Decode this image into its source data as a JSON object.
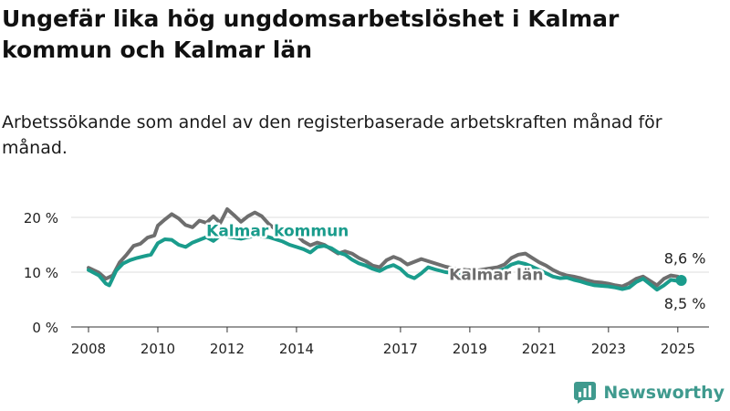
{
  "title": "Ungefär lika hög ungdomsarbetslöshet i Kalmar kommun och Kalmar län",
  "subtitle": "Arbetssökande som andel av den registerbaserade arbetskraften månad för månad.",
  "brand": "Newsworthy",
  "colors": {
    "kommun": "#1a9c8c",
    "lan": "#6e6e6e",
    "grid": "#dddddd",
    "axis": "#333333"
  },
  "chart_data": {
    "type": "line",
    "xlabel": "",
    "ylabel": "",
    "ylim": [
      0,
      22
    ],
    "xlim": [
      2007.5,
      2025.9
    ],
    "yticks": [
      0,
      10,
      20
    ],
    "ytick_labels": [
      "0 %",
      "10 %",
      "20 %"
    ],
    "xticks": [
      2008,
      2010,
      2012,
      2014,
      2017,
      2019,
      2021,
      2023,
      2025
    ],
    "xtick_labels": [
      "2008",
      "2010",
      "2012",
      "2014",
      "2017",
      "2019",
      "2021",
      "2023",
      "2025"
    ],
    "series": [
      {
        "name": "Kalmar län",
        "key": "lan",
        "points": [
          [
            2008.0,
            10.8
          ],
          [
            2008.3,
            9.9
          ],
          [
            2008.5,
            8.8
          ],
          [
            2008.7,
            9.4
          ],
          [
            2008.9,
            11.8
          ],
          [
            2009.1,
            13.2
          ],
          [
            2009.3,
            14.8
          ],
          [
            2009.5,
            15.2
          ],
          [
            2009.7,
            16.3
          ],
          [
            2009.9,
            16.7
          ],
          [
            2010.0,
            18.5
          ],
          [
            2010.2,
            19.6
          ],
          [
            2010.4,
            20.6
          ],
          [
            2010.6,
            19.8
          ],
          [
            2010.8,
            18.6
          ],
          [
            2011.0,
            18.2
          ],
          [
            2011.2,
            19.4
          ],
          [
            2011.4,
            19.0
          ],
          [
            2011.6,
            20.2
          ],
          [
            2011.8,
            19.0
          ],
          [
            2012.0,
            21.5
          ],
          [
            2012.2,
            20.4
          ],
          [
            2012.4,
            19.2
          ],
          [
            2012.6,
            20.2
          ],
          [
            2012.8,
            20.9
          ],
          [
            2013.0,
            20.2
          ],
          [
            2013.2,
            18.8
          ],
          [
            2013.4,
            17.8
          ],
          [
            2013.6,
            17.2
          ],
          [
            2013.8,
            17.6
          ],
          [
            2014.0,
            16.8
          ],
          [
            2014.2,
            15.6
          ],
          [
            2014.4,
            14.9
          ],
          [
            2014.6,
            15.4
          ],
          [
            2014.8,
            15.0
          ],
          [
            2015.0,
            14.2
          ],
          [
            2015.2,
            13.4
          ],
          [
            2015.4,
            13.8
          ],
          [
            2015.6,
            13.4
          ],
          [
            2015.8,
            12.6
          ],
          [
            2016.0,
            12.0
          ],
          [
            2016.2,
            11.2
          ],
          [
            2016.4,
            10.9
          ],
          [
            2016.6,
            12.2
          ],
          [
            2016.8,
            12.8
          ],
          [
            2017.0,
            12.3
          ],
          [
            2017.2,
            11.4
          ],
          [
            2017.4,
            11.9
          ],
          [
            2017.6,
            12.4
          ],
          [
            2017.8,
            12.0
          ],
          [
            2018.0,
            11.6
          ],
          [
            2018.3,
            11.0
          ],
          [
            2018.6,
            10.6
          ],
          [
            2018.9,
            10.4
          ],
          [
            2019.2,
            10.3
          ],
          [
            2019.5,
            10.6
          ],
          [
            2019.8,
            10.9
          ],
          [
            2020.0,
            11.4
          ],
          [
            2020.2,
            12.6
          ],
          [
            2020.4,
            13.2
          ],
          [
            2020.6,
            13.4
          ],
          [
            2020.8,
            12.6
          ],
          [
            2021.0,
            11.8
          ],
          [
            2021.2,
            11.2
          ],
          [
            2021.4,
            10.4
          ],
          [
            2021.6,
            9.8
          ],
          [
            2021.8,
            9.4
          ],
          [
            2022.0,
            9.2
          ],
          [
            2022.2,
            8.9
          ],
          [
            2022.4,
            8.5
          ],
          [
            2022.6,
            8.2
          ],
          [
            2022.8,
            8.1
          ],
          [
            2023.0,
            7.9
          ],
          [
            2023.2,
            7.6
          ],
          [
            2023.4,
            7.4
          ],
          [
            2023.6,
            8.0
          ],
          [
            2023.8,
            8.8
          ],
          [
            2024.0,
            9.2
          ],
          [
            2024.2,
            8.4
          ],
          [
            2024.4,
            7.6
          ],
          [
            2024.6,
            8.8
          ],
          [
            2024.8,
            9.4
          ],
          [
            2025.0,
            9.2
          ],
          [
            2025.1,
            8.6
          ]
        ]
      },
      {
        "name": "Kalmar kommun",
        "key": "kommun",
        "points": [
          [
            2008.0,
            10.4
          ],
          [
            2008.3,
            9.4
          ],
          [
            2008.5,
            7.9
          ],
          [
            2008.6,
            7.6
          ],
          [
            2008.8,
            10.3
          ],
          [
            2009.0,
            11.6
          ],
          [
            2009.2,
            12.2
          ],
          [
            2009.4,
            12.6
          ],
          [
            2009.6,
            12.9
          ],
          [
            2009.8,
            13.2
          ],
          [
            2010.0,
            15.3
          ],
          [
            2010.2,
            16.0
          ],
          [
            2010.4,
            15.9
          ],
          [
            2010.6,
            15.0
          ],
          [
            2010.8,
            14.6
          ],
          [
            2011.0,
            15.4
          ],
          [
            2011.2,
            15.9
          ],
          [
            2011.4,
            16.4
          ],
          [
            2011.6,
            15.7
          ],
          [
            2011.8,
            16.7
          ],
          [
            2012.0,
            16.5
          ],
          [
            2012.2,
            16.3
          ],
          [
            2012.4,
            16.1
          ],
          [
            2012.6,
            16.4
          ],
          [
            2012.8,
            16.6
          ],
          [
            2013.0,
            16.5
          ],
          [
            2013.2,
            16.4
          ],
          [
            2013.4,
            16.0
          ],
          [
            2013.6,
            15.6
          ],
          [
            2013.8,
            15.0
          ],
          [
            2014.0,
            14.6
          ],
          [
            2014.2,
            14.2
          ],
          [
            2014.4,
            13.6
          ],
          [
            2014.6,
            14.6
          ],
          [
            2014.8,
            14.8
          ],
          [
            2015.0,
            14.4
          ],
          [
            2015.2,
            13.6
          ],
          [
            2015.4,
            13.2
          ],
          [
            2015.6,
            12.3
          ],
          [
            2015.8,
            11.6
          ],
          [
            2016.0,
            11.2
          ],
          [
            2016.2,
            10.6
          ],
          [
            2016.4,
            10.2
          ],
          [
            2016.6,
            10.9
          ],
          [
            2016.8,
            11.3
          ],
          [
            2017.0,
            10.6
          ],
          [
            2017.2,
            9.4
          ],
          [
            2017.4,
            8.9
          ],
          [
            2017.6,
            9.8
          ],
          [
            2017.8,
            10.9
          ],
          [
            2018.0,
            10.5
          ],
          [
            2018.3,
            10.0
          ],
          [
            2018.6,
            9.8
          ],
          [
            2018.9,
            9.5
          ],
          [
            2019.2,
            9.6
          ],
          [
            2019.5,
            9.9
          ],
          [
            2019.8,
            10.2
          ],
          [
            2020.0,
            10.6
          ],
          [
            2020.2,
            11.4
          ],
          [
            2020.4,
            11.8
          ],
          [
            2020.6,
            11.5
          ],
          [
            2020.8,
            11.0
          ],
          [
            2021.0,
            10.4
          ],
          [
            2021.2,
            9.8
          ],
          [
            2021.4,
            9.2
          ],
          [
            2021.6,
            8.9
          ],
          [
            2021.8,
            9.0
          ],
          [
            2022.0,
            8.6
          ],
          [
            2022.2,
            8.3
          ],
          [
            2022.4,
            7.9
          ],
          [
            2022.6,
            7.6
          ],
          [
            2022.8,
            7.5
          ],
          [
            2023.0,
            7.4
          ],
          [
            2023.2,
            7.2
          ],
          [
            2023.4,
            6.9
          ],
          [
            2023.6,
            7.2
          ],
          [
            2023.8,
            8.2
          ],
          [
            2024.0,
            8.8
          ],
          [
            2024.2,
            7.8
          ],
          [
            2024.4,
            6.8
          ],
          [
            2024.6,
            7.6
          ],
          [
            2024.8,
            8.6
          ],
          [
            2025.0,
            8.4
          ],
          [
            2025.1,
            8.5
          ]
        ]
      }
    ],
    "annotations": [
      {
        "text": "Kalmar kommun",
        "series": "kommun",
        "x": 2011.4,
        "y": 16.6,
        "anchor": "start"
      },
      {
        "text": "Kalmar län",
        "series": "lan",
        "x": 2018.4,
        "y": 8.6,
        "anchor": "start"
      }
    ],
    "end_labels": [
      {
        "text": "8,6 %",
        "series": "lan",
        "x": 2025.1,
        "y": 8.6,
        "position": "above"
      },
      {
        "text": "8,5 %",
        "series": "kommun",
        "x": 2025.1,
        "y": 8.5,
        "position": "below"
      }
    ]
  }
}
